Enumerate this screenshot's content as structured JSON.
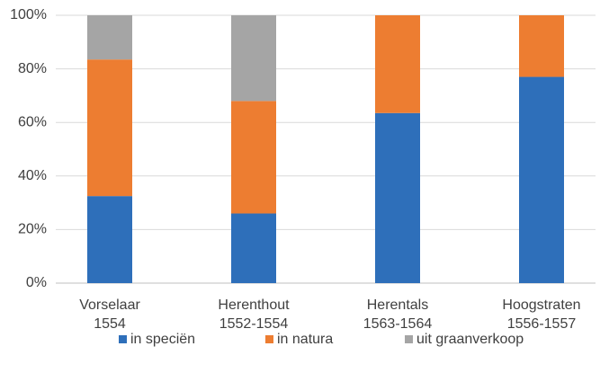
{
  "chart_data": {
    "type": "stacked_bar",
    "categories": [
      [
        "Vorselaar",
        "1554"
      ],
      [
        "Herenthout",
        "1552-1554"
      ],
      [
        "Herentals",
        "1563-1564"
      ],
      [
        "Hoogstraten",
        "1556-1557"
      ]
    ],
    "series": [
      {
        "name": "in speciën",
        "color": "#2e6fba",
        "values": [
          32.5,
          26,
          63.5,
          77
        ]
      },
      {
        "name": "in natura",
        "color": "#ed7d31",
        "values": [
          51,
          42,
          36.5,
          23
        ]
      },
      {
        "name": "uit graanverkoop",
        "color": "#a5a5a5",
        "values": [
          16.5,
          32,
          0,
          0
        ]
      }
    ],
    "ylim": [
      0,
      100
    ],
    "yticks": [
      {
        "value": 0,
        "label": "0%"
      },
      {
        "value": 20,
        "label": "20%"
      },
      {
        "value": 40,
        "label": "40%"
      },
      {
        "value": 60,
        "label": "60%"
      },
      {
        "value": 80,
        "label": "80%"
      },
      {
        "value": 100,
        "label": "100%"
      }
    ],
    "grid": true,
    "legend": "bottom"
  }
}
